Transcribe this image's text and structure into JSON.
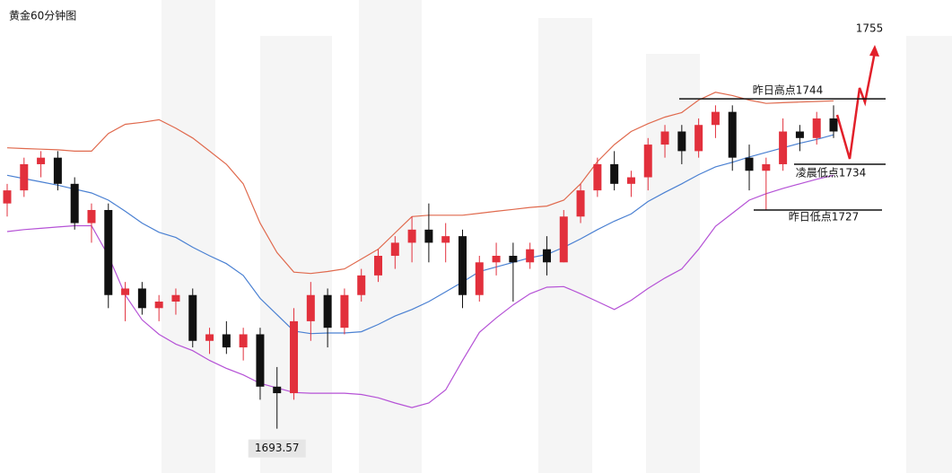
{
  "chart_data": {
    "type": "candlestick",
    "title": "黄金60分钟图",
    "ylim": [
      1686.8,
      1759.1
    ],
    "up_color": "#e2303c",
    "down_color": "#111111",
    "candles": {
      "open": [
        1728,
        1730,
        1734,
        1735,
        1731,
        1725,
        1727,
        1714,
        1715,
        1712,
        1713,
        1714,
        1707,
        1708,
        1706,
        1708,
        1700,
        1699,
        1710,
        1714,
        1709,
        1714,
        1717,
        1720,
        1722,
        1724,
        1722,
        1723,
        1714,
        1719,
        1720,
        1719,
        1721,
        1719,
        1726,
        1730,
        1734,
        1731,
        1732,
        1737,
        1739,
        1736,
        1740,
        1742,
        1735,
        1733,
        1734,
        1739,
        1738,
        1741
      ],
      "high": [
        1731,
        1735,
        1736,
        1736,
        1732,
        1728,
        1728,
        1716,
        1716,
        1714,
        1715,
        1715,
        1709,
        1710,
        1709,
        1709,
        1703,
        1712,
        1716,
        1715,
        1715,
        1718,
        1721,
        1723,
        1726,
        1728,
        1725,
        1724,
        1720,
        1722,
        1722,
        1722,
        1723,
        1727,
        1731,
        1735,
        1736,
        1733,
        1738,
        1740,
        1740,
        1741,
        1743,
        1743,
        1737,
        1735,
        1741,
        1740,
        1742,
        1743
      ],
      "low": [
        1726,
        1729,
        1732,
        1730,
        1724,
        1722,
        1712,
        1710,
        1711,
        1710,
        1711,
        1706,
        1705,
        1705,
        1704,
        1698,
        1693.57,
        1698,
        1707,
        1706,
        1708,
        1713,
        1716,
        1718,
        1719,
        1719,
        1719,
        1712,
        1713,
        1717,
        1713,
        1718,
        1717,
        1719,
        1725,
        1729,
        1730,
        1729,
        1730,
        1735,
        1734,
        1735,
        1738,
        1733,
        1730,
        1727,
        1733,
        1736,
        1737,
        1738
      ],
      "close": [
        1730,
        1734,
        1735,
        1731,
        1725,
        1727,
        1714,
        1715,
        1712,
        1713,
        1714,
        1707,
        1708,
        1706,
        1708,
        1700,
        1699,
        1710,
        1714,
        1709,
        1714,
        1717,
        1720,
        1722,
        1724,
        1722,
        1723,
        1714,
        1719,
        1720,
        1719,
        1721,
        1719,
        1726,
        1730,
        1734,
        1731,
        1732,
        1737,
        1739,
        1736,
        1740,
        1742,
        1735,
        1733,
        1734,
        1739,
        1738,
        1741,
        1739
      ]
    },
    "bands": [
      {
        "color": "#e06a4e",
        "values": [
          1736.5,
          1736.4,
          1736.3,
          1736.2,
          1736.0,
          1736.0,
          1738.7,
          1740.1,
          1740.4,
          1740.8,
          1739.5,
          1738,
          1736,
          1734,
          1731,
          1725,
          1720.5,
          1717.5,
          1717.3,
          1717.6,
          1718,
          1719.5,
          1721,
          1723.5,
          1726,
          1726.2,
          1726.2,
          1726.2,
          1726.5,
          1726.8,
          1727.1,
          1727.4,
          1727.6,
          1728.5,
          1731,
          1734.4,
          1737,
          1739,
          1740.2,
          1741.2,
          1741.9,
          1743.8,
          1745,
          1744.5,
          1743.8,
          1743.3,
          1743.4,
          1743.5,
          1743.6,
          1743.7
        ]
      },
      {
        "color": "#4a80d2",
        "values": [
          1732.3,
          1731.8,
          1731.3,
          1730.8,
          1730.2,
          1729.6,
          1728.5,
          1726.8,
          1725,
          1723.6,
          1722.8,
          1721.3,
          1720,
          1718.8,
          1717,
          1713.5,
          1711,
          1708.5,
          1708.1,
          1708.2,
          1708.2,
          1708.4,
          1709.5,
          1710.8,
          1711.8,
          1713,
          1714.5,
          1716,
          1717.6,
          1718.3,
          1719,
          1719.7,
          1720.2,
          1721.3,
          1722.6,
          1724,
          1725.3,
          1726.4,
          1728.3,
          1729.7,
          1731,
          1732.4,
          1733.6,
          1734.3,
          1735.1,
          1735.8,
          1736.5,
          1737.2,
          1737.8,
          1738.5
        ]
      },
      {
        "color": "#b552d6",
        "values": [
          1723.7,
          1724.0,
          1724.2,
          1724.4,
          1724.6,
          1724.6,
          1720,
          1714,
          1710.2,
          1708,
          1706.5,
          1705.5,
          1704,
          1702.8,
          1701.8,
          1700.5,
          1699.8,
          1699.1,
          1699,
          1699,
          1699,
          1698.8,
          1698.3,
          1697.5,
          1696.8,
          1697.5,
          1699.5,
          1704,
          1708.3,
          1710.5,
          1712.5,
          1714.2,
          1715.2,
          1715.3,
          1714.2,
          1713,
          1711.8,
          1713.2,
          1715,
          1716.6,
          1718,
          1721,
          1724.5,
          1726.5,
          1728.5,
          1729.5,
          1730.3,
          1731,
          1731.7,
          1732.3
        ]
      }
    ],
    "annotations": [
      {
        "text": "昨日高点1744",
        "value": 1744
      },
      {
        "text": "凌晨低点1734",
        "value": 1734
      },
      {
        "text": "昨日低点1727",
        "value": 1727
      },
      {
        "text": "1755",
        "value": 1755
      },
      {
        "text": "1693.57",
        "value": 1693.57
      }
    ]
  }
}
